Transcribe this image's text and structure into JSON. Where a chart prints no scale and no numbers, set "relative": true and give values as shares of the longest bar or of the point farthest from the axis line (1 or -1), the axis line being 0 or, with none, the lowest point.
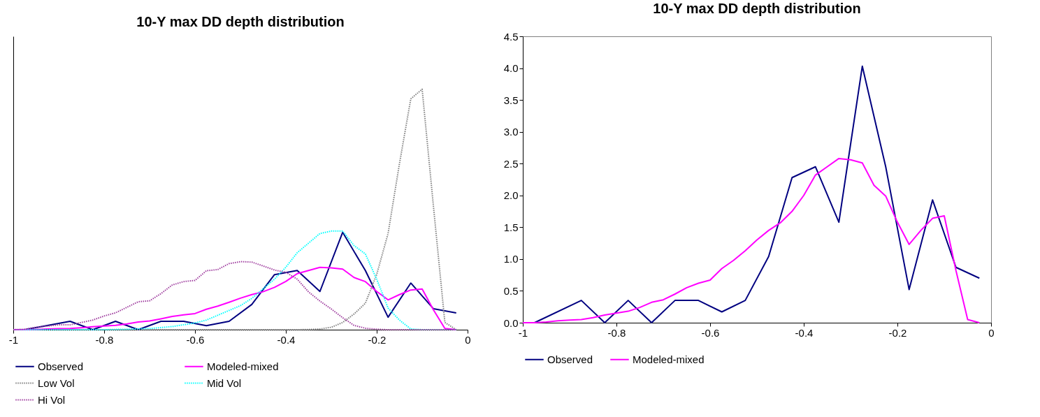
{
  "chart_data": [
    {
      "type": "line",
      "title": "10-Y max DD depth distribution",
      "relative": true,
      "xlim": [
        -1,
        0
      ],
      "xticks": [
        -1,
        -0.8,
        -0.6,
        -0.4,
        -0.2,
        0
      ],
      "tick_labels": "x",
      "legend": "bottom",
      "grid": false,
      "series": [
        {
          "name": "Observed",
          "color": "#000080",
          "line_style": "solid",
          "x": [
            -0.975,
            -0.875,
            -0.825,
            -0.775,
            -0.725,
            -0.675,
            -0.625,
            -0.575,
            -0.525,
            -0.475,
            -0.425,
            -0.375,
            -0.325,
            -0.275,
            -0.225,
            -0.175,
            -0.125,
            -0.075,
            -0.025
          ],
          "values": [
            0,
            0.035,
            0,
            0.035,
            0,
            0.035,
            0.035,
            0.017,
            0.035,
            0.105,
            0.229,
            0.246,
            0.159,
            0.405,
            0.246,
            0.052,
            0.194,
            0.087,
            0.07
          ]
        },
        {
          "name": "Modeled-mixed",
          "color": "#ff00ff",
          "line_style": "solid",
          "x": [
            -1,
            -0.975,
            -0.95,
            -0.925,
            -0.9,
            -0.875,
            -0.85,
            -0.825,
            -0.8,
            -0.775,
            -0.75,
            -0.725,
            -0.7,
            -0.675,
            -0.65,
            -0.625,
            -0.6,
            -0.575,
            -0.55,
            -0.525,
            -0.5,
            -0.475,
            -0.45,
            -0.425,
            -0.4,
            -0.375,
            -0.35,
            -0.325,
            -0.3,
            -0.275,
            -0.25,
            -0.225,
            -0.2,
            -0.175,
            -0.15,
            -0.125,
            -0.1,
            -0.075,
            -0.05,
            -0.025
          ],
          "values": [
            0,
            0,
            0.001,
            0.003,
            0.004,
            0.005,
            0.008,
            0.012,
            0.015,
            0.018,
            0.024,
            0.032,
            0.036,
            0.045,
            0.055,
            0.062,
            0.067,
            0.085,
            0.098,
            0.114,
            0.131,
            0.146,
            0.158,
            0.176,
            0.201,
            0.233,
            0.246,
            0.259,
            0.257,
            0.252,
            0.217,
            0.2,
            0.159,
            0.124,
            0.146,
            0.165,
            0.169,
            0.082,
            0.005,
            0
          ]
        },
        {
          "name": "Low Vol",
          "color": "#808080",
          "line_style": "dotted",
          "x": [
            -1,
            -0.4,
            -0.375,
            -0.35,
            -0.325,
            -0.3,
            -0.275,
            -0.25,
            -0.225,
            -0.2,
            -0.175,
            -0.15,
            -0.125,
            -0.1,
            -0.075,
            -0.05,
            -0.025
          ],
          "values": [
            0,
            0,
            0,
            0.001,
            0.003,
            0.01,
            0.03,
            0.065,
            0.11,
            0.23,
            0.4,
            0.69,
            0.96,
            1,
            0.51,
            0.03,
            0
          ]
        },
        {
          "name": "Mid Vol",
          "color": "#00ffff",
          "line_style": "dotted",
          "x": [
            -1,
            -0.8,
            -0.75,
            -0.7,
            -0.65,
            -0.6,
            -0.575,
            -0.55,
            -0.525,
            -0.5,
            -0.475,
            -0.45,
            -0.425,
            -0.4,
            -0.375,
            -0.35,
            -0.325,
            -0.3,
            -0.275,
            -0.25,
            -0.225,
            -0.2,
            -0.175,
            -0.15,
            -0.125,
            -0.1,
            -0.05,
            -0.025
          ],
          "values": [
            0,
            0,
            0.002,
            0.005,
            0.013,
            0.028,
            0.04,
            0.06,
            0.08,
            0.1,
            0.13,
            0.17,
            0.21,
            0.26,
            0.32,
            0.36,
            0.4,
            0.41,
            0.41,
            0.35,
            0.315,
            0.21,
            0.09,
            0.04,
            0.003,
            0,
            0,
            0
          ]
        },
        {
          "name": "Hi Vol",
          "color": "#a040a0",
          "line_style": "dotted",
          "x": [
            -1,
            -0.975,
            -0.95,
            -0.925,
            -0.9,
            -0.875,
            -0.85,
            -0.825,
            -0.8,
            -0.775,
            -0.75,
            -0.725,
            -0.7,
            -0.675,
            -0.65,
            -0.625,
            -0.6,
            -0.575,
            -0.55,
            -0.525,
            -0.5,
            -0.475,
            -0.45,
            -0.425,
            -0.4,
            -0.375,
            -0.35,
            -0.325,
            -0.3,
            -0.275,
            -0.25,
            -0.225,
            -0.2,
            -0.175,
            -0.1,
            -0.025
          ],
          "values": [
            0,
            0.002,
            0.01,
            0.015,
            0.02,
            0.02,
            0.03,
            0.04,
            0.057,
            0.07,
            0.093,
            0.116,
            0.12,
            0.15,
            0.186,
            0.2,
            0.205,
            0.245,
            0.25,
            0.275,
            0.283,
            0.281,
            0.265,
            0.248,
            0.239,
            0.21,
            0.157,
            0.119,
            0.086,
            0.05,
            0.018,
            0.006,
            0.002,
            0,
            0,
            0
          ]
        }
      ]
    },
    {
      "type": "line",
      "title": "10-Y max DD depth distribution",
      "xlim": [
        -1,
        0
      ],
      "xticks": [
        -1,
        -0.8,
        -0.6,
        -0.4,
        -0.2,
        0
      ],
      "ylim": [
        0,
        4.5
      ],
      "yticks": [
        {
          "value": 0,
          "label": "0.0"
        },
        {
          "value": 0.5,
          "label": "0.5"
        },
        {
          "value": 1,
          "label": "1.0"
        },
        {
          "value": 1.5,
          "label": "1.5"
        },
        {
          "value": 2,
          "label": "2.0"
        },
        {
          "value": 2.5,
          "label": "2.5"
        },
        {
          "value": 3,
          "label": "3.0"
        },
        {
          "value": 3.5,
          "label": "3.5"
        },
        {
          "value": 4,
          "label": "4.0"
        },
        {
          "value": 4.5,
          "label": "4.5"
        }
      ],
      "legend": "bottom",
      "grid": false,
      "series": [
        {
          "name": "Observed",
          "color": "#000080",
          "line_style": "solid",
          "x": [
            -0.975,
            -0.875,
            -0.825,
            -0.775,
            -0.725,
            -0.675,
            -0.625,
            -0.575,
            -0.525,
            -0.475,
            -0.425,
            -0.375,
            -0.325,
            -0.275,
            -0.225,
            -0.175,
            -0.125,
            -0.075,
            -0.025
          ],
          "values": [
            0,
            0.35,
            0,
            0.35,
            0,
            0.35,
            0.35,
            0.17,
            0.35,
            1.04,
            2.28,
            2.45,
            1.58,
            4.03,
            2.45,
            0.52,
            1.93,
            0.87,
            0.7
          ]
        },
        {
          "name": "Modeled-mixed",
          "color": "#ff00ff",
          "line_style": "solid",
          "x": [
            -1,
            -0.975,
            -0.95,
            -0.925,
            -0.9,
            -0.875,
            -0.85,
            -0.825,
            -0.8,
            -0.775,
            -0.75,
            -0.725,
            -0.7,
            -0.675,
            -0.65,
            -0.625,
            -0.6,
            -0.575,
            -0.55,
            -0.525,
            -0.5,
            -0.475,
            -0.45,
            -0.425,
            -0.4,
            -0.375,
            -0.35,
            -0.325,
            -0.3,
            -0.275,
            -0.25,
            -0.225,
            -0.2,
            -0.175,
            -0.15,
            -0.125,
            -0.1,
            -0.075,
            -0.05,
            -0.025
          ],
          "values": [
            0,
            0,
            0.01,
            0.03,
            0.04,
            0.05,
            0.08,
            0.12,
            0.15,
            0.18,
            0.24,
            0.32,
            0.36,
            0.45,
            0.55,
            0.62,
            0.67,
            0.85,
            0.98,
            1.13,
            1.3,
            1.45,
            1.57,
            1.75,
            2,
            2.32,
            2.45,
            2.58,
            2.56,
            2.51,
            2.16,
            1.99,
            1.58,
            1.23,
            1.45,
            1.64,
            1.68,
            0.82,
            0.05,
            0
          ]
        }
      ]
    }
  ]
}
